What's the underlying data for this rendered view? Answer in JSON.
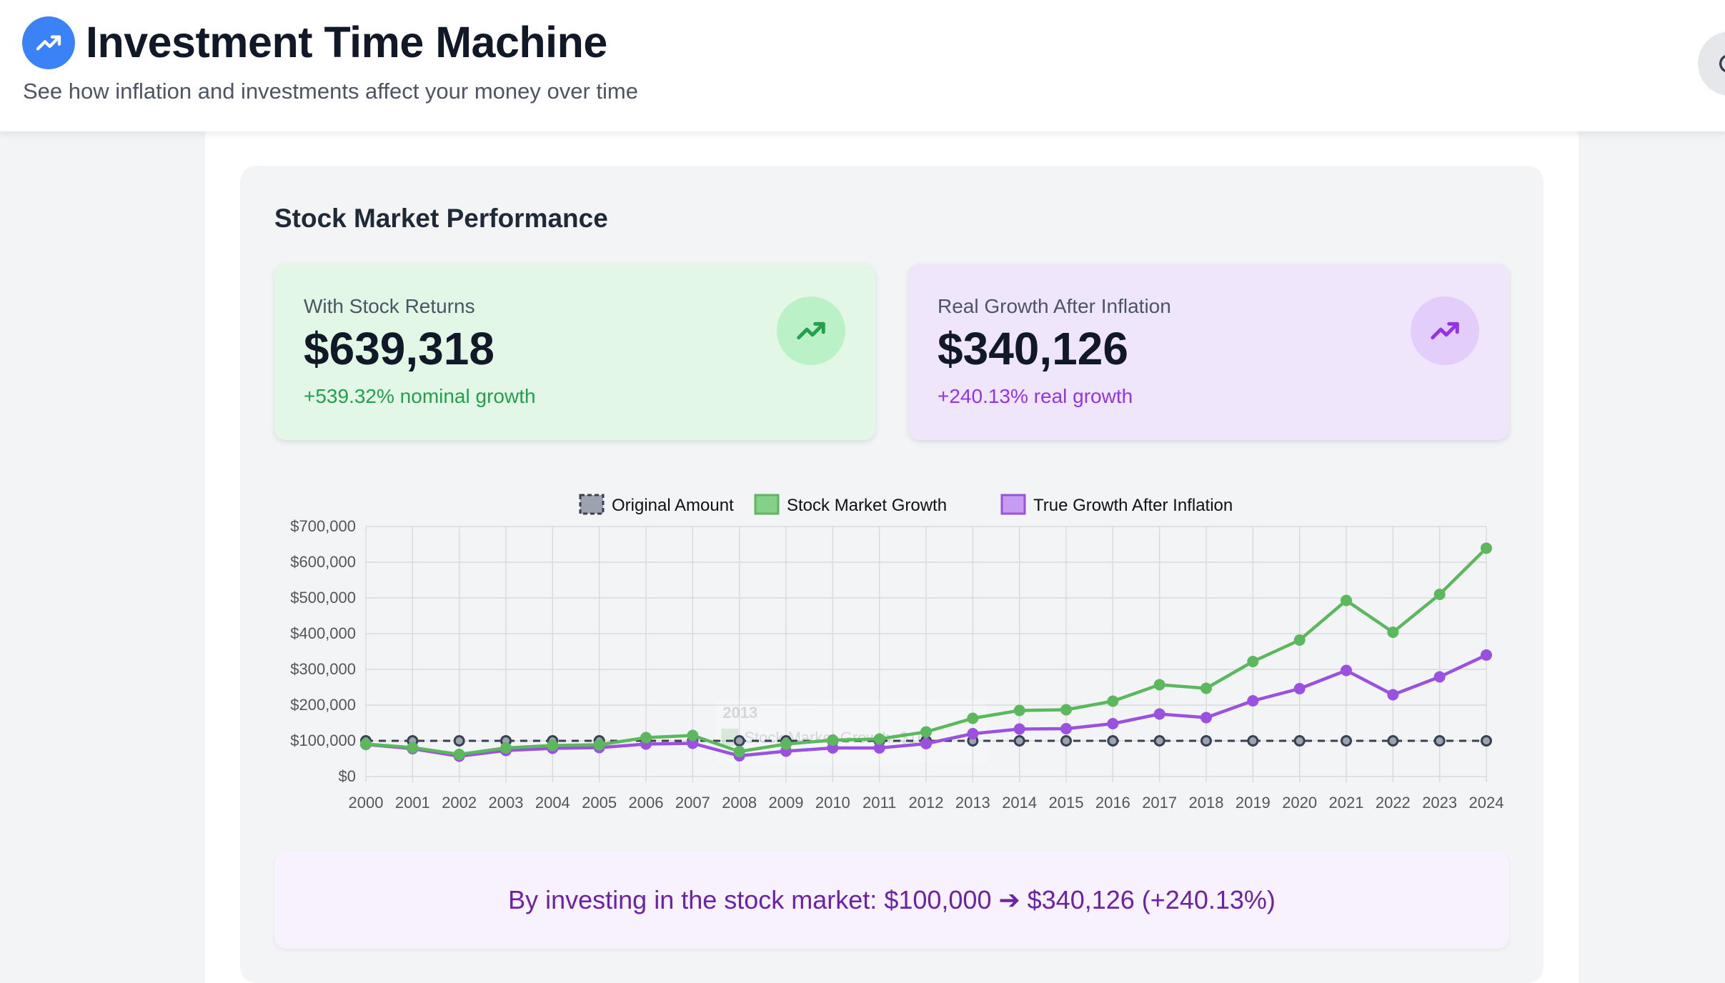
{
  "header": {
    "title": "Investment Time Machine",
    "subtitle": "See how inflation and investments affect your money over time"
  },
  "section": {
    "title": "Stock Market Performance"
  },
  "cards": {
    "nominal": {
      "label": "With Stock Returns",
      "value": "$639,318",
      "delta": "+539.32% nominal growth"
    },
    "real": {
      "label": "Real Growth After Inflation",
      "value": "$340,126",
      "delta": "+240.13% real growth"
    }
  },
  "summary": {
    "text": "By investing in the stock market: $100,000 ➔ $340,126 (+240.13%)"
  },
  "colors": {
    "accent_blue": "#3b82f6",
    "green": "#5cb85c",
    "purple": "#9b51e0",
    "gray": "#6b7280"
  },
  "chart_data": {
    "type": "line",
    "title": "",
    "xlabel": "",
    "ylabel": "",
    "x": [
      "2000",
      "2001",
      "2002",
      "2003",
      "2004",
      "2005",
      "2006",
      "2007",
      "2008",
      "2009",
      "2010",
      "2011",
      "2012",
      "2013",
      "2014",
      "2015",
      "2016",
      "2017",
      "2018",
      "2019",
      "2020",
      "2021",
      "2022",
      "2023",
      "2024"
    ],
    "ylim": [
      0,
      700000
    ],
    "yticks": [
      0,
      100000,
      200000,
      300000,
      400000,
      500000,
      600000,
      700000
    ],
    "ytick_labels": [
      "$0",
      "$100,000",
      "$200,000",
      "$300,000",
      "$400,000",
      "$500,000",
      "$600,000",
      "$700,000"
    ],
    "legend": [
      "Original Amount",
      "Stock Market Growth",
      "True Growth After Inflation"
    ],
    "legend_position": "top-center",
    "grid": true,
    "tooltip_faded": {
      "title": "2013",
      "line": "Stock Market Growth: $16..."
    },
    "series": [
      {
        "name": "Original Amount",
        "color": "#4b5563",
        "dashed": true,
        "values": [
          100000,
          100000,
          100000,
          100000,
          100000,
          100000,
          100000,
          100000,
          100000,
          100000,
          100000,
          100000,
          100000,
          100000,
          100000,
          100000,
          100000,
          100000,
          100000,
          100000,
          100000,
          100000,
          100000,
          100000,
          100000
        ]
      },
      {
        "name": "Stock Market Growth",
        "color": "#5cb85c",
        "dashed": false,
        "values": [
          91000,
          81000,
          62000,
          80000,
          87000,
          89000,
          109000,
          115000,
          70000,
          91000,
          102000,
          105000,
          125000,
          163000,
          185000,
          187000,
          211000,
          257000,
          247000,
          322000,
          382000,
          493000,
          404000,
          510000,
          639318
        ]
      },
      {
        "name": "True Growth After Inflation",
        "color": "#9b51e0",
        "dashed": false,
        "values": [
          90000,
          78000,
          57000,
          73000,
          79000,
          81000,
          91000,
          93000,
          58000,
          71000,
          80000,
          80000,
          92000,
          120000,
          133000,
          134000,
          148000,
          175000,
          165000,
          212000,
          246000,
          297000,
          229000,
          279000,
          340126
        ]
      }
    ]
  }
}
